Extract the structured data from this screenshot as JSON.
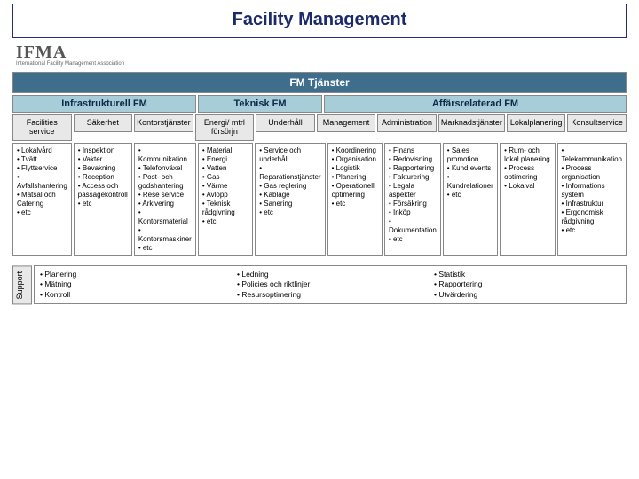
{
  "title": "Facility Management",
  "logo": {
    "text": "IFMA",
    "subtitle": "International Facility Management Association"
  },
  "mainHeader": "FM Tjänster",
  "categories": [
    {
      "label": "Infrastrukturell FM",
      "span": 3
    },
    {
      "label": "Teknisk FM",
      "span": 2
    },
    {
      "label": "Affärsrelaterad FM",
      "span": 5
    }
  ],
  "columns": [
    {
      "header": "Facilities service",
      "items": [
        "Lokalvård",
        "Tvätt",
        "Flyttservice",
        "Avfallshantering",
        "Matsal och Catering",
        "etc"
      ]
    },
    {
      "header": "Säkerhet",
      "items": [
        "Inspektion",
        "Vakter",
        "Bevakning",
        "Reception",
        "Access och passagekontroll",
        "etc"
      ]
    },
    {
      "header": "Kontorstjänster",
      "items": [
        "Kommunikation",
        "Telefonväxel",
        "Post- och godshantering",
        "Rese service",
        "Arkivering",
        "Kontorsmaterial",
        "Kontorsmaskiner",
        "etc"
      ]
    },
    {
      "header": "Energi/ mtrl försörjn",
      "items": [
        "Material",
        "Energi",
        "Vatten",
        "Gas",
        "Värme",
        "Avlopp",
        "Teknisk rådgivning",
        "etc"
      ]
    },
    {
      "header": "Underhåll",
      "items": [
        "Service och underhåll",
        "Reparationstjänster",
        "Gas reglering",
        "Kablage",
        "Sanering",
        "etc"
      ]
    },
    {
      "header": "Management",
      "items": [
        "Koordinering",
        "Organisation",
        "Logistik",
        "Planering",
        "Operationell optimering",
        "etc"
      ]
    },
    {
      "header": "Administration",
      "items": [
        "Finans",
        "Redovisning",
        "Rapportering",
        "Fakturering",
        "Legala aspekter",
        "Försäkring",
        "Inköp",
        "Dokumentation",
        "etc"
      ]
    },
    {
      "header": "Marknadstjänster",
      "items": [
        "Sales promotion",
        "Kund events",
        "Kundrelationer",
        "etc"
      ]
    },
    {
      "header": "Lokalplanering",
      "items": [
        "Rum- och lokal planering",
        "Process optimering",
        "Lokalval"
      ]
    },
    {
      "header": "Konsultservice",
      "items": [
        "Telekommunikation",
        "Process organisation",
        "Informations system",
        "Infrastruktur",
        "Ergonomisk rådgivning",
        "etc"
      ]
    }
  ],
  "support": {
    "label": "Support",
    "groups": [
      [
        "Planering",
        "Mätning",
        "Kontroll"
      ],
      [
        "Ledning",
        "Policies och riktlinjer",
        "Resursoptimering"
      ],
      [
        "Statistik",
        "Rapportering",
        "Utvärdering"
      ]
    ]
  },
  "colors": {
    "titleBorder": "#2a2a7a",
    "titleText": "#1b2a6b",
    "mainHeaderBg": "#3f6d8c",
    "catHeaderBg": "#a7cdd8",
    "subHeaderBg": "#e8e8e8",
    "border": "#888888",
    "background": "#ffffff"
  }
}
